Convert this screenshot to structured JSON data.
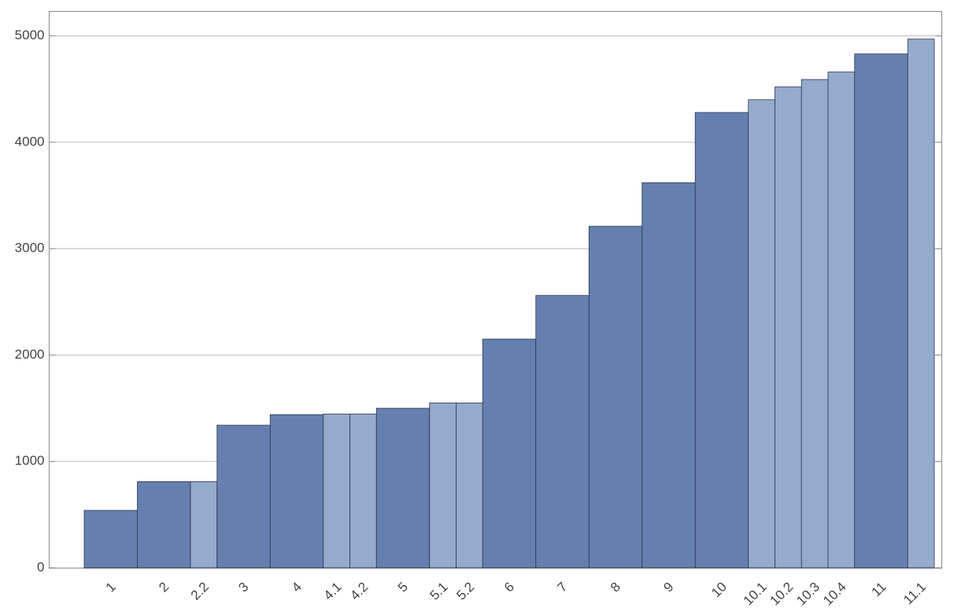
{
  "chart_data": {
    "type": "bar",
    "categories": [
      "1",
      "2",
      "2.2",
      "3",
      "4",
      "4.1",
      "4.2",
      "5",
      "5.1",
      "5.2",
      "6",
      "7",
      "8",
      "9",
      "10",
      "10.1",
      "10.2",
      "10.3",
      "10.4",
      "11",
      "11.1"
    ],
    "series": [
      {
        "color": "#6580b0",
        "values": [
          540,
          810,
          null,
          1340,
          1440,
          null,
          null,
          1500,
          null,
          null,
          2150,
          2560,
          3210,
          3620,
          4280,
          null,
          null,
          null,
          null,
          4830,
          null
        ]
      },
      {
        "color": "#96abcc",
        "values": [
          null,
          null,
          810,
          null,
          null,
          1445,
          1445,
          null,
          1550,
          1550,
          null,
          null,
          null,
          null,
          null,
          4400,
          4520,
          4590,
          4660,
          null,
          4970
        ]
      }
    ],
    "ylim": [
      0,
      5230
    ],
    "yticks": [
      0,
      1000,
      2000,
      3000,
      4000,
      5000
    ],
    "grid": true
  }
}
